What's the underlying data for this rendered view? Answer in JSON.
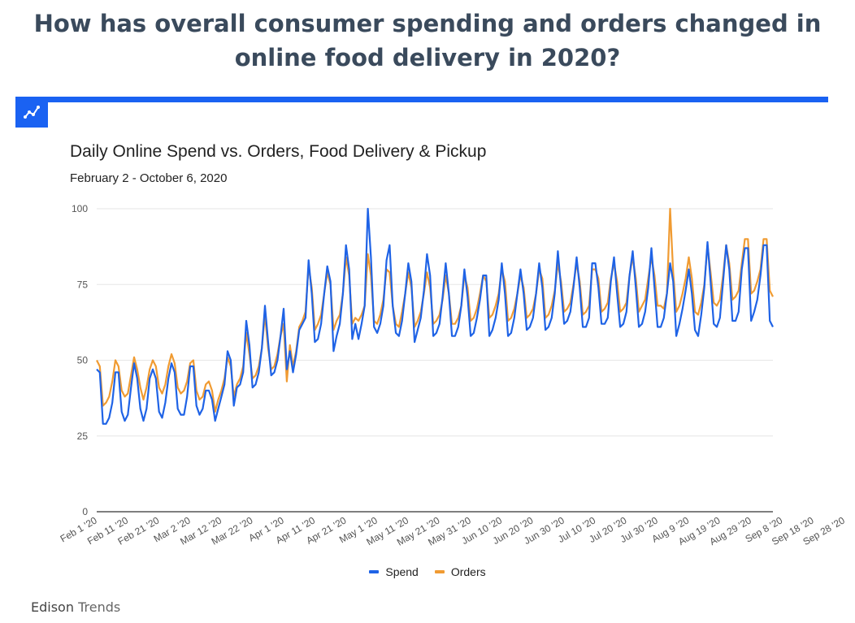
{
  "headline": "How has overall consumer spending and orders changed in online food delivery in 2020?",
  "header": {
    "icon": "line-chart-icon",
    "bar_color": "#1a62f2"
  },
  "brand": {
    "name_bold": "Edison",
    "name_light": " Trends"
  },
  "chart_data": {
    "type": "line",
    "title": "Daily Online Spend vs. Orders, Food Delivery & Pickup",
    "subtitle": "February 2 - October 6, 2020",
    "xlabel": "",
    "ylabel": "",
    "ylim": [
      0,
      100
    ],
    "yticks": [
      0,
      25,
      50,
      75,
      100
    ],
    "grid": true,
    "legend_position": "bottom",
    "x_tick_labels": [
      "Feb 1 '20",
      "Feb 11 '20",
      "Feb 21 '20",
      "Mar 2 '20",
      "Mar 12 '20",
      "Mar 22 '20",
      "Apr 1 '20",
      "Apr 11 '20",
      "Apr 21 '20",
      "May 1 '20",
      "May 11 '20",
      "May 21 '20",
      "May 31 '20",
      "Jun 10 '20",
      "Jun 20 '20",
      "Jun 30 '20",
      "Jul 10 '20",
      "Jul 20 '20",
      "Jul 30 '20",
      "Aug 9 '20",
      "Aug 19 '20",
      "Aug 29 '20",
      "Sep 8 '20",
      "Sep 18 '20",
      "Sep 28 '20"
    ],
    "x_start": "2020-02-02",
    "series": [
      {
        "name": "Spend",
        "color": "#1f63e6",
        "values": [
          47,
          46,
          29,
          29,
          31,
          36,
          46,
          46,
          33,
          30,
          32,
          41,
          49,
          44,
          34,
          30,
          34,
          44,
          47,
          44,
          33,
          31,
          36,
          44,
          49,
          46,
          34,
          32,
          32,
          38,
          48,
          48,
          35,
          32,
          34,
          40,
          40,
          37,
          30,
          34,
          38,
          42,
          53,
          50,
          35,
          41,
          42,
          46,
          63,
          55,
          41,
          42,
          46,
          54,
          68,
          56,
          45,
          46,
          50,
          58,
          67,
          47,
          53,
          46,
          52,
          60,
          62,
          64,
          83,
          72,
          56,
          57,
          62,
          72,
          81,
          76,
          53,
          58,
          62,
          72,
          88,
          80,
          57,
          62,
          57,
          62,
          68,
          100,
          84,
          61,
          59,
          62,
          68,
          83,
          88,
          68,
          59,
          58,
          63,
          72,
          82,
          76,
          56,
          60,
          64,
          73,
          85,
          78,
          58,
          59,
          62,
          71,
          82,
          72,
          58,
          58,
          61,
          68,
          80,
          71,
          58,
          59,
          64,
          70,
          78,
          78,
          58,
          60,
          64,
          70,
          82,
          72,
          58,
          59,
          64,
          72,
          80,
          72,
          60,
          61,
          64,
          72,
          82,
          74,
          60,
          61,
          64,
          72,
          86,
          74,
          62,
          63,
          66,
          74,
          84,
          74,
          61,
          61,
          64,
          82,
          82,
          74,
          62,
          62,
          64,
          76,
          84,
          72,
          61,
          62,
          66,
          78,
          86,
          74,
          61,
          62,
          66,
          74,
          87,
          74,
          61,
          61,
          64,
          72,
          82,
          76,
          58,
          62,
          67,
          73,
          80,
          72,
          60,
          58,
          65,
          74,
          89,
          76,
          62,
          61,
          64,
          76,
          88,
          80,
          63,
          63,
          66,
          80,
          87,
          87,
          63,
          66,
          70,
          78,
          88,
          88,
          63,
          61
        ]
      },
      {
        "name": "Orders",
        "color": "#f09b32",
        "values": [
          50,
          48,
          35,
          36,
          38,
          43,
          50,
          48,
          40,
          38,
          39,
          45,
          51,
          47,
          41,
          37,
          41,
          47,
          50,
          48,
          41,
          39,
          42,
          48,
          52,
          49,
          41,
          39,
          40,
          43,
          49,
          50,
          40,
          37,
          38,
          42,
          43,
          40,
          33,
          37,
          40,
          44,
          51,
          48,
          38,
          42,
          44,
          48,
          59,
          52,
          44,
          45,
          48,
          54,
          65,
          54,
          47,
          48,
          52,
          58,
          62,
          43,
          55,
          48,
          53,
          61,
          63,
          66,
          81,
          74,
          60,
          62,
          65,
          72,
          79,
          75,
          60,
          63,
          65,
          72,
          84,
          78,
          62,
          64,
          63,
          65,
          68,
          85,
          78,
          63,
          62,
          65,
          70,
          80,
          79,
          68,
          62,
          61,
          66,
          72,
          79,
          74,
          61,
          63,
          66,
          72,
          79,
          74,
          62,
          63,
          65,
          70,
          78,
          72,
          62,
          62,
          64,
          68,
          78,
          74,
          63,
          64,
          67,
          72,
          78,
          76,
          64,
          65,
          68,
          72,
          80,
          76,
          63,
          64,
          67,
          72,
          78,
          74,
          64,
          65,
          67,
          72,
          80,
          77,
          64,
          65,
          68,
          73,
          82,
          76,
          66,
          67,
          69,
          75,
          82,
          76,
          65,
          66,
          68,
          80,
          80,
          77,
          66,
          67,
          69,
          77,
          82,
          76,
          66,
          67,
          69,
          78,
          84,
          77,
          66,
          68,
          70,
          77,
          84,
          78,
          68,
          68,
          67,
          72,
          100,
          79,
          66,
          68,
          72,
          77,
          84,
          77,
          66,
          65,
          69,
          75,
          88,
          79,
          69,
          68,
          70,
          78,
          88,
          82,
          70,
          71,
          73,
          82,
          90,
          90,
          72,
          73,
          76,
          80,
          90,
          90,
          73,
          71
        ]
      }
    ]
  }
}
